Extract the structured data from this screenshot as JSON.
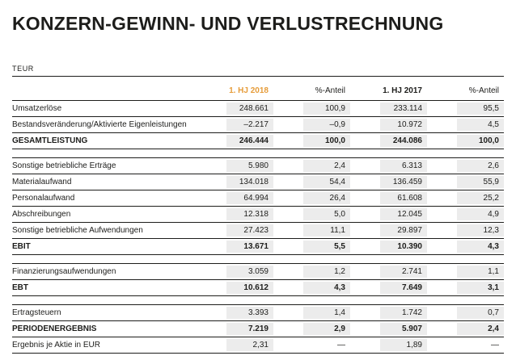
{
  "page": {
    "title": "KONZERN-GEWINN- UND VERLUSTRECHNUNG",
    "unit_label": "TEUR"
  },
  "colors": {
    "accent_2018": "#e69c3a",
    "cell_bg": "#ececec",
    "text": "#1d1d1b",
    "line": "#1d1d1b"
  },
  "table": {
    "columns": [
      "1. HJ 2018",
      "%-Anteil",
      "1. HJ 2017",
      "%-Anteil"
    ],
    "rows": [
      {
        "label": "Umsatzerlöse",
        "values": [
          "248.661",
          "100,9",
          "233.114",
          "95,5"
        ]
      },
      {
        "label": "Bestandsveränderung/Aktivierte Eigenleistungen",
        "values": [
          "–2.217",
          "–0,9",
          "10.972",
          "4,5"
        ]
      },
      {
        "label": "GESAMTLEISTUNG",
        "values": [
          "246.444",
          "100,0",
          "244.086",
          "100,0"
        ],
        "bold": true
      },
      {
        "spacer": true
      },
      {
        "label": "Sonstige betriebliche Erträge",
        "values": [
          "5.980",
          "2,4",
          "6.313",
          "2,6"
        ]
      },
      {
        "label": "Materialaufwand",
        "values": [
          "134.018",
          "54,4",
          "136.459",
          "55,9"
        ]
      },
      {
        "label": "Personalaufwand",
        "values": [
          "64.994",
          "26,4",
          "61.608",
          "25,2"
        ]
      },
      {
        "label": "Abschreibungen",
        "values": [
          "12.318",
          "5,0",
          "12.045",
          "4,9"
        ]
      },
      {
        "label": "Sonstige betriebliche Aufwendungen",
        "values": [
          "27.423",
          "11,1",
          "29.897",
          "12,3"
        ]
      },
      {
        "label": "EBIT",
        "values": [
          "13.671",
          "5,5",
          "10.390",
          "4,3"
        ],
        "bold": true
      },
      {
        "spacer": true
      },
      {
        "label": "Finanzierungsaufwendungen",
        "values": [
          "3.059",
          "1,2",
          "2.741",
          "1,1"
        ]
      },
      {
        "label": "EBT",
        "values": [
          "10.612",
          "4,3",
          "7.649",
          "3,1"
        ],
        "bold": true
      },
      {
        "spacer": true
      },
      {
        "label": "Ertragsteuern",
        "values": [
          "3.393",
          "1,4",
          "1.742",
          "0,7"
        ]
      },
      {
        "label": "PERIODENERGEBNIS",
        "values": [
          "7.219",
          "2,9",
          "5.907",
          "2,4"
        ],
        "bold": true
      },
      {
        "label": "Ergebnis je Aktie in EUR",
        "values": [
          "2,31",
          "—",
          "1,89",
          "—"
        ]
      }
    ]
  }
}
